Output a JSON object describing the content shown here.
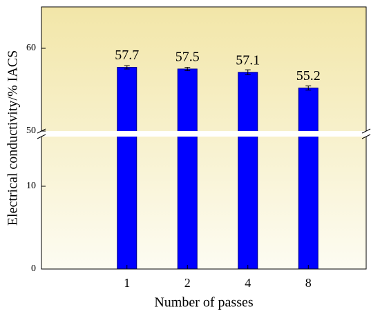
{
  "chart_data": {
    "type": "bar",
    "x_label": "Number of passes",
    "y_label": "Electrical conductivity/% IACS",
    "categories": [
      "1",
      "2",
      "4",
      "8"
    ],
    "values": [
      57.7,
      57.5,
      57.1,
      55.2
    ],
    "errors": [
      0.2,
      0.2,
      0.3,
      0.25
    ],
    "color": "#0000ff",
    "ylim": [
      0,
      65
    ],
    "y_break": [
      16,
      50
    ],
    "yticks": [
      0,
      10,
      50,
      60
    ]
  }
}
